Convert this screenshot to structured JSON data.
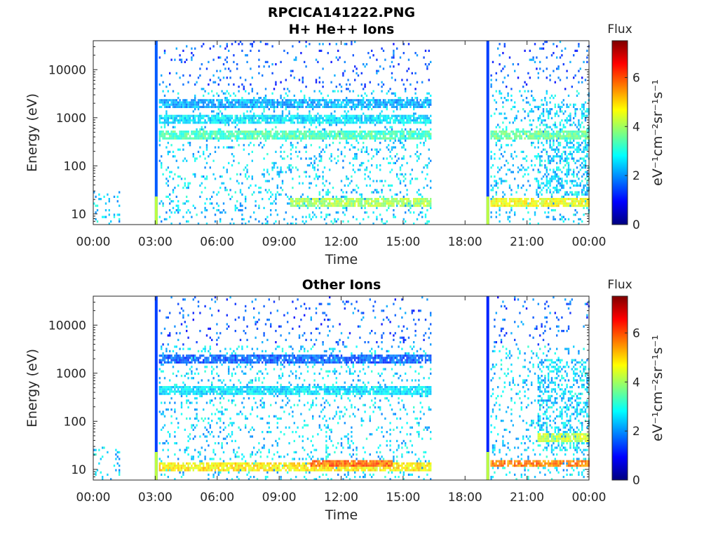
{
  "figure": {
    "title": "RPCICA141222.PNG"
  },
  "colors": {
    "colormap": [
      "#00007f",
      "#0000ff",
      "#007fff",
      "#00ffff",
      "#7fff7f",
      "#ffff00",
      "#ff7f00",
      "#ff0000",
      "#7f0000"
    ],
    "axis": "#262626"
  },
  "chart_data": [
    {
      "type": "heatmap",
      "title": "H+ He++ Ions",
      "xlabel": "Time",
      "ylabel": "Energy (eV)",
      "xlim": [
        "00:00",
        "24:00"
      ],
      "x_tick_labels": [
        "00:00",
        "03:00",
        "06:00",
        "09:00",
        "12:00",
        "15:00",
        "18:00",
        "21:00",
        "00:00"
      ],
      "y_scale": "log",
      "ylim": [
        6,
        40000
      ],
      "y_tick_values": [
        10,
        100,
        1000,
        10000
      ],
      "y_tick_labels": [
        "10",
        "100",
        "1000",
        "10000"
      ],
      "colorbar": {
        "title": "Flux",
        "unit_label": "eV⁻¹cm⁻²sr⁻¹s⁻¹",
        "range": [
          0,
          7.5
        ],
        "tick_values": [
          0,
          2,
          4,
          6
        ],
        "tick_labels": [
          "0",
          "2",
          "4",
          "6"
        ]
      },
      "features": [
        {
          "kind": "vertical_line",
          "time_h": 3.05,
          "value": 1.6
        },
        {
          "kind": "vertical_line",
          "time_h": 19.1,
          "value": 1.4
        },
        {
          "kind": "band",
          "t_start": 3.1,
          "t_end": 16.3,
          "e_center": 450,
          "value": 3.3
        },
        {
          "kind": "band",
          "t_start": 3.1,
          "t_end": 16.3,
          "e_center": 1000,
          "value": 2.6
        },
        {
          "kind": "band",
          "t_start": 3.1,
          "t_end": 16.3,
          "e_center": 2000,
          "value": 2.2
        },
        {
          "kind": "band",
          "t_start": 9.5,
          "t_end": 16.3,
          "e_center": 18,
          "value": 4.0
        },
        {
          "kind": "band",
          "t_start": 19.2,
          "t_end": 24.0,
          "e_center": 18,
          "value": 4.6
        },
        {
          "kind": "band",
          "t_start": 19.2,
          "t_end": 24.0,
          "e_center": 450,
          "value": 3.6
        }
      ]
    },
    {
      "type": "heatmap",
      "title": "Other Ions",
      "xlabel": "Time",
      "ylabel": "Energy (eV)",
      "xlim": [
        "00:00",
        "24:00"
      ],
      "x_tick_labels": [
        "00:00",
        "03:00",
        "06:00",
        "09:00",
        "12:00",
        "15:00",
        "18:00",
        "21:00",
        "00:00"
      ],
      "y_scale": "log",
      "ylim": [
        6,
        40000
      ],
      "y_tick_values": [
        10,
        100,
        1000,
        10000
      ],
      "y_tick_labels": [
        "10",
        "100",
        "1000",
        "10000"
      ],
      "colorbar": {
        "title": "Flux",
        "unit_label": "eV⁻¹cm⁻²sr⁻¹s⁻¹",
        "range": [
          0,
          7.5
        ],
        "tick_values": [
          0,
          2,
          4,
          6
        ],
        "tick_labels": [
          "0",
          "2",
          "4",
          "6"
        ]
      },
      "features": [
        {
          "kind": "vertical_line",
          "time_h": 3.05,
          "value": 1.4
        },
        {
          "kind": "vertical_line",
          "time_h": 19.1,
          "value": 1.2
        },
        {
          "kind": "band",
          "t_start": 3.1,
          "t_end": 16.3,
          "e_center": 450,
          "value": 2.6
        },
        {
          "kind": "band",
          "t_start": 3.1,
          "t_end": 16.3,
          "e_center": 2000,
          "value": 1.6
        },
        {
          "kind": "band",
          "t_start": 3.1,
          "t_end": 16.3,
          "e_center": 12,
          "value": 4.8
        },
        {
          "kind": "band",
          "t_start": 10.5,
          "t_end": 14.5,
          "e_center": 14,
          "value": 5.8
        },
        {
          "kind": "band",
          "t_start": 19.2,
          "t_end": 24.0,
          "e_center": 14,
          "value": 5.6
        },
        {
          "kind": "band",
          "t_start": 21.5,
          "t_end": 24.0,
          "e_center": 50,
          "value": 4.2
        }
      ]
    }
  ]
}
